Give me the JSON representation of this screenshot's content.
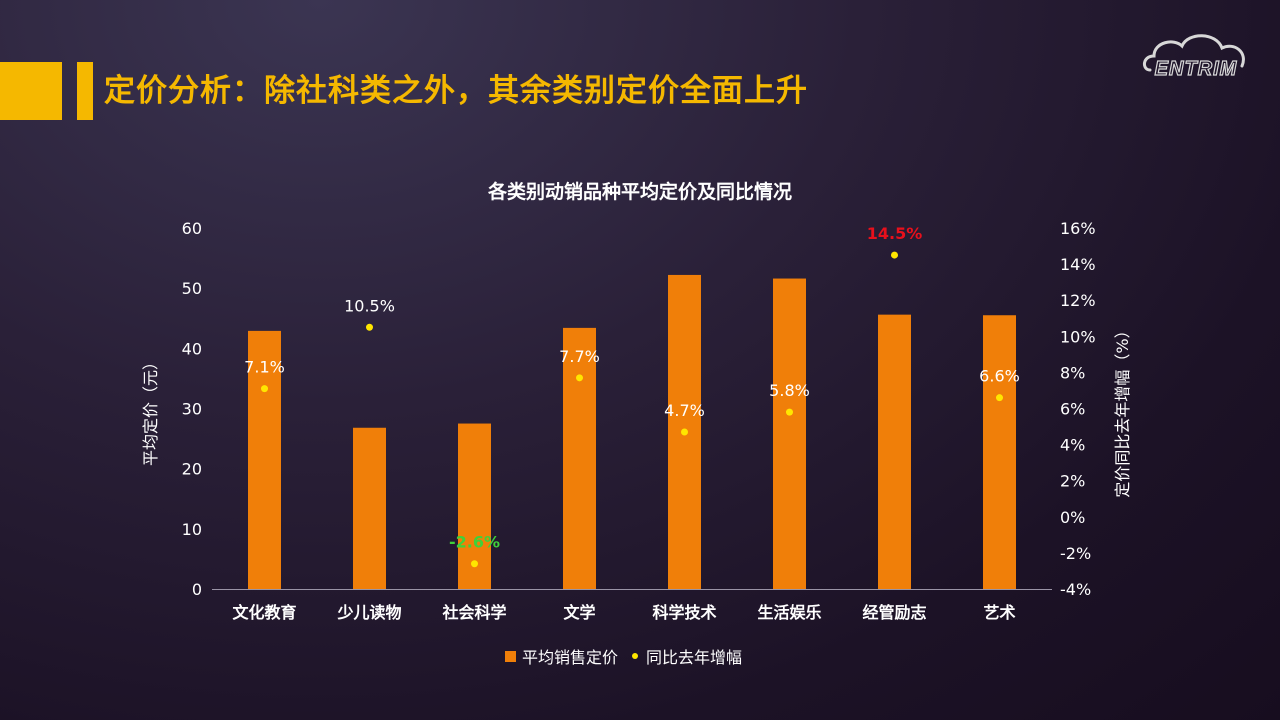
{
  "header": {
    "title": "定价分析：除社科类之外，其余类别定价全面上升"
  },
  "logo": {
    "text": "ENTRIM",
    "icon": "cloud-icon"
  },
  "colors": {
    "accent": "#f5b800",
    "bar": "#f07f09",
    "dot": "#ffe600",
    "positive_highlight": "#e8101c",
    "negative_highlight": "#3fd13a"
  },
  "chart_data": {
    "type": "bar",
    "title": "各类别动销品种平均定价及同比情况",
    "categories": [
      "文化教育",
      "少儿读物",
      "社会科学",
      "文学",
      "科学技术",
      "生活娱乐",
      "经管励志",
      "艺术"
    ],
    "series": [
      {
        "name": "平均销售定价",
        "type": "bar",
        "axis": "left",
        "values": [
          42.9,
          26.8,
          27.5,
          43.4,
          52.2,
          51.6,
          45.6,
          45.5
        ]
      },
      {
        "name": "同比去年增幅",
        "type": "scatter",
        "axis": "right",
        "values": [
          7.1,
          10.5,
          -2.6,
          7.7,
          4.7,
          5.8,
          14.5,
          6.6
        ],
        "labels": [
          "7.1%",
          "10.5%",
          "-2.6%",
          "7.7%",
          "4.7%",
          "5.8%",
          "14.5%",
          "6.6%"
        ]
      }
    ],
    "ylabel": "平均定价（元）",
    "ylim": [
      0,
      60
    ],
    "yticks": [
      "0",
      "10",
      "20",
      "30",
      "40",
      "50",
      "60"
    ],
    "y2label": "定价同比去年增幅（%）",
    "y2lim": [
      -4,
      16
    ],
    "y2ticks": [
      "-4%",
      "-2%",
      "0%",
      "2%",
      "4%",
      "6%",
      "8%",
      "10%",
      "12%",
      "14%",
      "16%"
    ],
    "grid": false,
    "legend_position": "bottom",
    "highlights": {
      "max": "14.5%",
      "min": "-2.6%"
    }
  }
}
